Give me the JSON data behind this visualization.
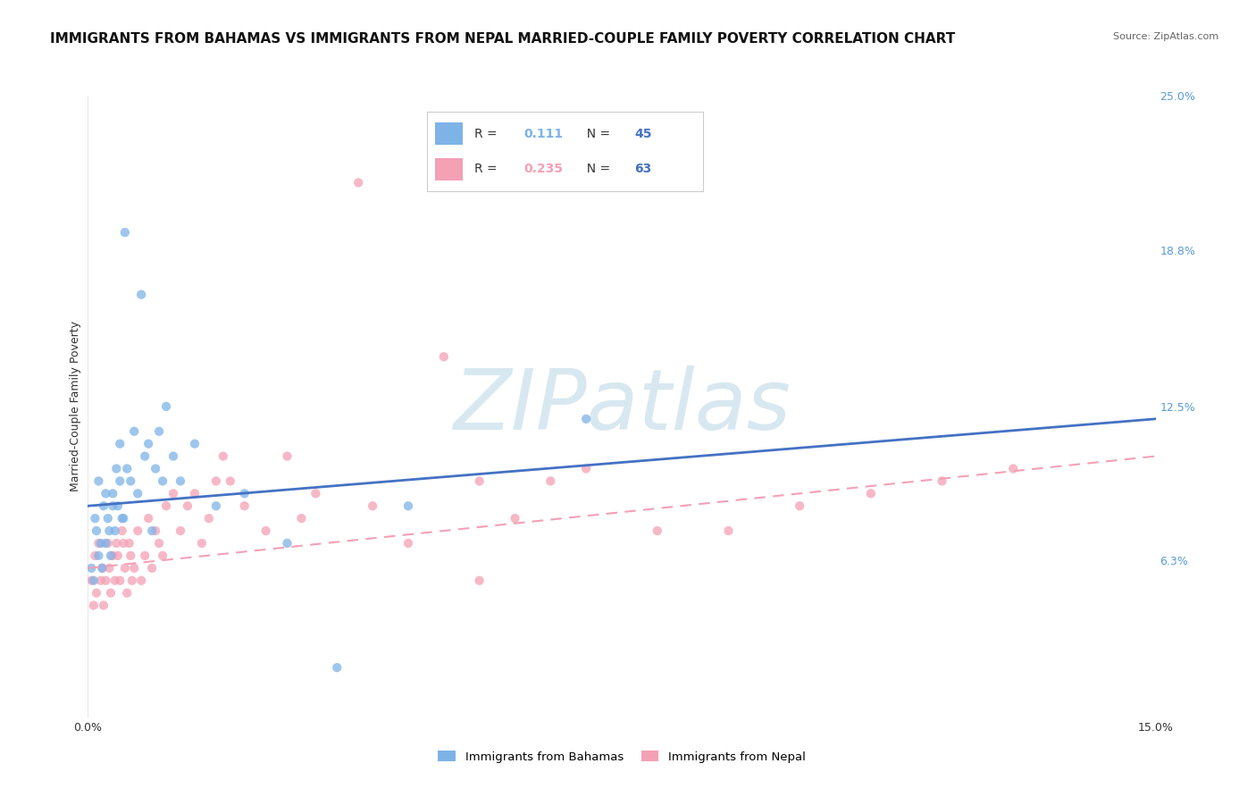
{
  "title": "IMMIGRANTS FROM BAHAMAS VS IMMIGRANTS FROM NEPAL MARRIED-COUPLE FAMILY POVERTY CORRELATION CHART",
  "source": "Source: ZipAtlas.com",
  "ylabel": "Married-Couple Family Poverty",
  "xlim": [
    0.0,
    15.0
  ],
  "ylim": [
    0.0,
    25.0
  ],
  "ytick_values": [
    6.3,
    12.5,
    18.8,
    25.0
  ],
  "xtick_values": [
    0.0,
    15.0
  ],
  "xtick_labels": [
    "0.0%",
    "15.0%"
  ],
  "series": [
    {
      "name": "Immigrants from Bahamas",
      "color": "#7eb3e8",
      "R": 0.111,
      "N": 45,
      "x": [
        0.05,
        0.08,
        0.1,
        0.12,
        0.15,
        0.15,
        0.18,
        0.2,
        0.22,
        0.25,
        0.25,
        0.28,
        0.3,
        0.32,
        0.35,
        0.35,
        0.38,
        0.4,
        0.42,
        0.45,
        0.45,
        0.48,
        0.5,
        0.52,
        0.55,
        0.6,
        0.65,
        0.7,
        0.75,
        0.8,
        0.85,
        0.9,
        0.95,
        1.0,
        1.05,
        1.1,
        1.2,
        1.3,
        1.5,
        1.8,
        2.2,
        2.8,
        3.5,
        4.5,
        7.0
      ],
      "y": [
        6.0,
        5.5,
        8.0,
        7.5,
        6.5,
        9.5,
        7.0,
        6.0,
        8.5,
        7.0,
        9.0,
        8.0,
        7.5,
        6.5,
        9.0,
        8.5,
        7.5,
        10.0,
        8.5,
        9.5,
        11.0,
        8.0,
        8.0,
        19.5,
        10.0,
        9.5,
        11.5,
        9.0,
        17.0,
        10.5,
        11.0,
        7.5,
        10.0,
        11.5,
        9.5,
        12.5,
        10.5,
        9.5,
        11.0,
        8.5,
        9.0,
        7.0,
        2.0,
        8.5,
        12.0
      ],
      "trend_x": [
        0.0,
        15.0
      ],
      "trend_y": [
        8.5,
        12.0
      ],
      "trend_style": "solid",
      "trend_color": "#4472c4"
    },
    {
      "name": "Immigrants from Nepal",
      "color": "#f4a0b5",
      "R": 0.235,
      "N": 63,
      "x": [
        0.05,
        0.08,
        0.1,
        0.12,
        0.15,
        0.18,
        0.2,
        0.22,
        0.25,
        0.28,
        0.3,
        0.32,
        0.35,
        0.38,
        0.4,
        0.42,
        0.45,
        0.48,
        0.5,
        0.52,
        0.55,
        0.58,
        0.6,
        0.62,
        0.65,
        0.7,
        0.75,
        0.8,
        0.85,
        0.9,
        0.95,
        1.0,
        1.05,
        1.1,
        1.2,
        1.3,
        1.4,
        1.5,
        1.6,
        1.7,
        1.8,
        1.9,
        2.0,
        2.2,
        2.5,
        2.8,
        3.0,
        3.2,
        3.8,
        4.0,
        4.5,
        5.0,
        5.5,
        6.0,
        6.5,
        7.0,
        8.0,
        9.0,
        10.0,
        11.0,
        12.0,
        13.0,
        5.5
      ],
      "y": [
        5.5,
        4.5,
        6.5,
        5.0,
        7.0,
        5.5,
        6.0,
        4.5,
        5.5,
        7.0,
        6.0,
        5.0,
        6.5,
        5.5,
        7.0,
        6.5,
        5.5,
        7.5,
        7.0,
        6.0,
        5.0,
        7.0,
        6.5,
        5.5,
        6.0,
        7.5,
        5.5,
        6.5,
        8.0,
        6.0,
        7.5,
        7.0,
        6.5,
        8.5,
        9.0,
        7.5,
        8.5,
        9.0,
        7.0,
        8.0,
        9.5,
        10.5,
        9.5,
        8.5,
        7.5,
        10.5,
        8.0,
        9.0,
        21.5,
        8.5,
        7.0,
        14.5,
        9.5,
        8.0,
        9.5,
        10.0,
        7.5,
        7.5,
        8.5,
        9.0,
        9.5,
        10.0,
        5.5
      ],
      "trend_x": [
        0.0,
        15.0
      ],
      "trend_y": [
        6.0,
        10.5
      ],
      "trend_style": "dashed",
      "trend_color": "#f4a0b5"
    }
  ],
  "watermark_text": "ZIPatlas",
  "watermark_color": "#d8e8f0",
  "bg_color": "#ffffff",
  "grid_color": "#e8e8e8",
  "title_fontsize": 11,
  "axis_label_fontsize": 9,
  "tick_fontsize": 9,
  "source_fontsize": 8,
  "right_tick_color": "#5b9bd5"
}
